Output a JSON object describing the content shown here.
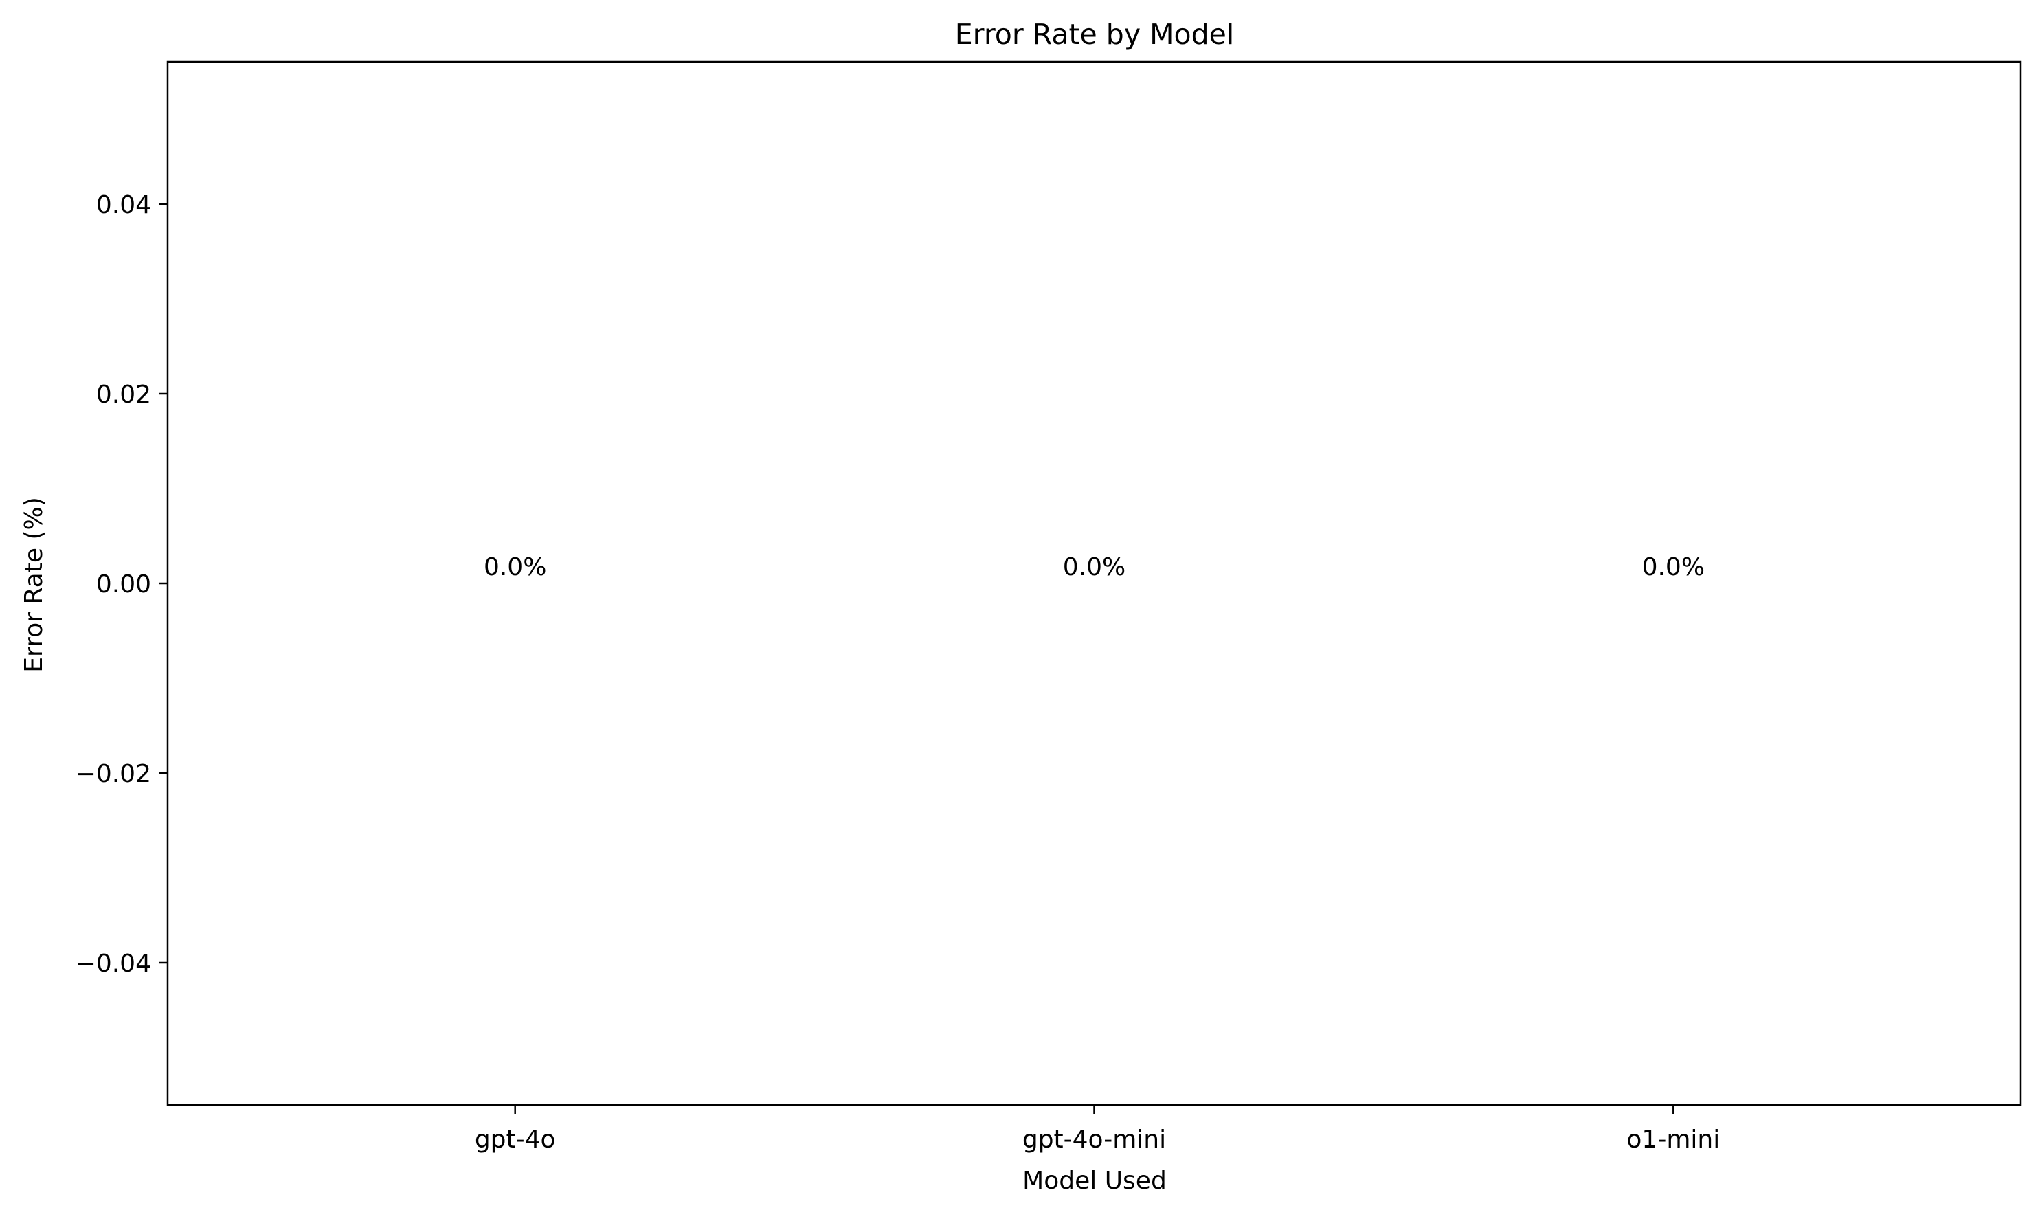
{
  "chart_data": {
    "type": "bar",
    "title": "Error Rate by Model",
    "xlabel": "Model Used",
    "ylabel": "Error Rate (%)",
    "categories": [
      "gpt-4o",
      "gpt-4o-mini",
      "o1-mini"
    ],
    "values": [
      0.0,
      0.0,
      0.0
    ],
    "data_labels": [
      "0.0%",
      "0.0%",
      "0.0%"
    ],
    "ylim": [
      -0.055,
      0.055
    ],
    "yticks": [
      -0.04,
      -0.02,
      0.0,
      0.02,
      0.04
    ],
    "ytick_labels": [
      "−0.04",
      "−0.02",
      "0.00",
      "0.02",
      "0.04"
    ],
    "grid": false,
    "legend": "none",
    "colors": {
      "bar": "#1f77b4",
      "axes": "#000000",
      "background": "#ffffff"
    }
  }
}
